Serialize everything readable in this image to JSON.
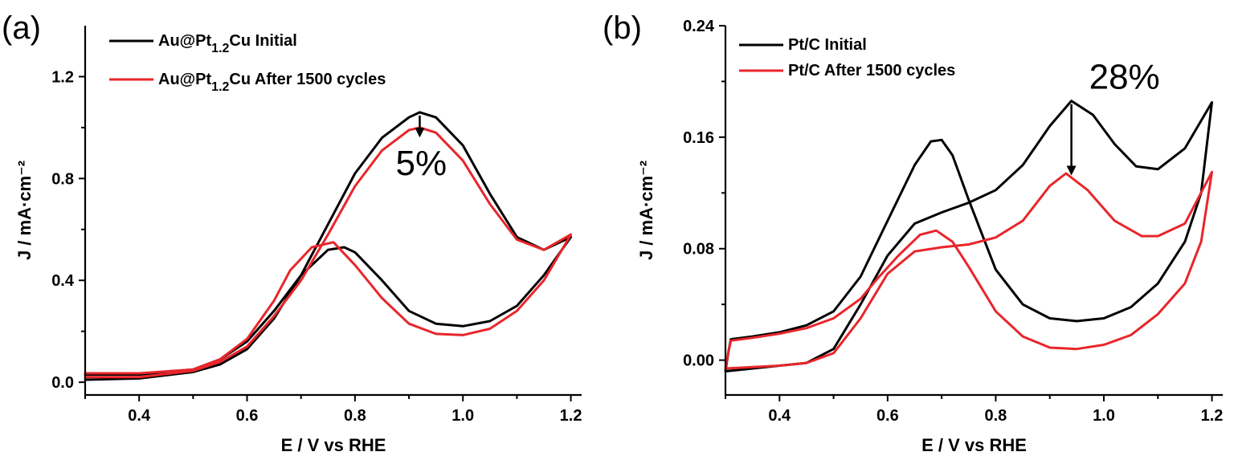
{
  "chart_data": [
    {
      "type": "line",
      "panel_label": "(a)",
      "xlabel": "E / V vs RHE",
      "ylabel": "J / mA·cm⁻²",
      "xlim": [
        0.3,
        1.22
      ],
      "ylim": [
        -0.05,
        1.4
      ],
      "xticks": [
        0.4,
        0.6,
        0.8,
        1.0,
        1.2
      ],
      "xtick_labels": [
        "0.4",
        "0.6",
        "0.8",
        "1.0",
        "1.2"
      ],
      "yticks": [
        0.0,
        0.4,
        0.8,
        1.2
      ],
      "ytick_labels": [
        "0.0",
        "0.4",
        "0.8",
        "1.2"
      ],
      "legend_position": "top-left",
      "series": [
        {
          "name": "Au@Pt1.2Cu Initial",
          "legend_parts": [
            "Au@Pt",
            "1.2",
            "Cu Initial"
          ],
          "color": "#000000",
          "forward": [
            [
              0.3,
              0.01
            ],
            [
              0.4,
              0.015
            ],
            [
              0.5,
              0.04
            ],
            [
              0.55,
              0.07
            ],
            [
              0.6,
              0.13
            ],
            [
              0.65,
              0.25
            ],
            [
              0.7,
              0.42
            ],
            [
              0.75,
              0.62
            ],
            [
              0.8,
              0.82
            ],
            [
              0.85,
              0.96
            ],
            [
              0.9,
              1.04
            ],
            [
              0.92,
              1.06
            ],
            [
              0.95,
              1.04
            ],
            [
              1.0,
              0.93
            ],
            [
              1.05,
              0.74
            ],
            [
              1.1,
              0.57
            ],
            [
              1.15,
              0.52
            ],
            [
              1.2,
              0.57
            ]
          ],
          "reverse": [
            [
              1.2,
              0.57
            ],
            [
              1.15,
              0.42
            ],
            [
              1.1,
              0.3
            ],
            [
              1.05,
              0.24
            ],
            [
              1.0,
              0.22
            ],
            [
              0.95,
              0.23
            ],
            [
              0.9,
              0.28
            ],
            [
              0.85,
              0.4
            ],
            [
              0.8,
              0.51
            ],
            [
              0.78,
              0.53
            ],
            [
              0.75,
              0.52
            ],
            [
              0.7,
              0.42
            ],
            [
              0.65,
              0.28
            ],
            [
              0.6,
              0.16
            ],
            [
              0.55,
              0.09
            ],
            [
              0.5,
              0.05
            ],
            [
              0.4,
              0.03
            ],
            [
              0.3,
              0.03
            ]
          ]
        },
        {
          "name": "Au@Pt1.2Cu After 1500 cycles",
          "legend_parts": [
            "Au@Pt",
            "1.2",
            "Cu After 1500 cycles"
          ],
          "color": "#e8262b",
          "forward": [
            [
              0.3,
              0.02
            ],
            [
              0.4,
              0.02
            ],
            [
              0.5,
              0.045
            ],
            [
              0.55,
              0.08
            ],
            [
              0.6,
              0.14
            ],
            [
              0.65,
              0.26
            ],
            [
              0.7,
              0.4
            ],
            [
              0.75,
              0.58
            ],
            [
              0.8,
              0.77
            ],
            [
              0.85,
              0.91
            ],
            [
              0.9,
              0.99
            ],
            [
              0.92,
              1.0
            ],
            [
              0.95,
              0.98
            ],
            [
              1.0,
              0.87
            ],
            [
              1.05,
              0.7
            ],
            [
              1.1,
              0.56
            ],
            [
              1.15,
              0.52
            ],
            [
              1.2,
              0.58
            ]
          ],
          "reverse": [
            [
              1.2,
              0.58
            ],
            [
              1.15,
              0.4
            ],
            [
              1.1,
              0.28
            ],
            [
              1.05,
              0.21
            ],
            [
              1.0,
              0.185
            ],
            [
              0.95,
              0.19
            ],
            [
              0.9,
              0.23
            ],
            [
              0.85,
              0.33
            ],
            [
              0.8,
              0.46
            ],
            [
              0.76,
              0.55
            ],
            [
              0.72,
              0.53
            ],
            [
              0.68,
              0.44
            ],
            [
              0.65,
              0.32
            ],
            [
              0.6,
              0.17
            ],
            [
              0.55,
              0.09
            ],
            [
              0.5,
              0.05
            ],
            [
              0.4,
              0.035
            ],
            [
              0.3,
              0.035
            ]
          ]
        }
      ],
      "annotation": {
        "text": "5%",
        "x": 0.92,
        "y_from": 1.06,
        "y_to": 0.98
      }
    },
    {
      "type": "line",
      "panel_label": "(b)",
      "xlabel": "E / V vs RHE",
      "ylabel": "J / mA·cm⁻²",
      "xlim": [
        0.3,
        1.22
      ],
      "ylim": [
        -0.025,
        0.24
      ],
      "xticks": [
        0.4,
        0.6,
        0.8,
        1.0,
        1.2
      ],
      "xtick_labels": [
        "0.4",
        "0.6",
        "0.8",
        "1.0",
        "1.2"
      ],
      "yticks": [
        0.0,
        0.08,
        0.16,
        0.24
      ],
      "ytick_labels": [
        "0.00",
        "0.08",
        "0.16",
        "0.24"
      ],
      "legend_position": "top-left",
      "series": [
        {
          "name": "Pt/C Initial",
          "legend_parts": [
            "Pt/C Initial",
            "",
            ""
          ],
          "color": "#000000",
          "forward": [
            [
              0.3,
              -0.008
            ],
            [
              0.35,
              -0.006
            ],
            [
              0.4,
              -0.004
            ],
            [
              0.45,
              -0.002
            ],
            [
              0.5,
              0.008
            ],
            [
              0.55,
              0.04
            ],
            [
              0.6,
              0.075
            ],
            [
              0.65,
              0.098
            ],
            [
              0.7,
              0.106
            ],
            [
              0.75,
              0.113
            ],
            [
              0.8,
              0.122
            ],
            [
              0.85,
              0.14
            ],
            [
              0.9,
              0.168
            ],
            [
              0.94,
              0.186
            ],
            [
              0.98,
              0.176
            ],
            [
              1.02,
              0.155
            ],
            [
              1.06,
              0.139
            ],
            [
              1.1,
              0.137
            ],
            [
              1.15,
              0.152
            ],
            [
              1.2,
              0.185
            ]
          ],
          "reverse": [
            [
              1.2,
              0.185
            ],
            [
              1.18,
              0.12
            ],
            [
              1.15,
              0.085
            ],
            [
              1.1,
              0.055
            ],
            [
              1.05,
              0.038
            ],
            [
              1.0,
              0.03
            ],
            [
              0.95,
              0.028
            ],
            [
              0.9,
              0.03
            ],
            [
              0.85,
              0.04
            ],
            [
              0.8,
              0.065
            ],
            [
              0.75,
              0.115
            ],
            [
              0.72,
              0.147
            ],
            [
              0.7,
              0.158
            ],
            [
              0.68,
              0.157
            ],
            [
              0.65,
              0.14
            ],
            [
              0.6,
              0.1
            ],
            [
              0.55,
              0.06
            ],
            [
              0.5,
              0.035
            ],
            [
              0.45,
              0.025
            ],
            [
              0.4,
              0.02
            ],
            [
              0.35,
              0.017
            ],
            [
              0.31,
              0.015
            ],
            [
              0.305,
              0.005
            ],
            [
              0.3,
              -0.008
            ]
          ]
        },
        {
          "name": "Pt/C After 1500 cycles",
          "legend_parts": [
            "Pt/C After 1500 cycles",
            "",
            ""
          ],
          "color": "#e8262b",
          "forward": [
            [
              0.3,
              -0.006
            ],
            [
              0.35,
              -0.005
            ],
            [
              0.4,
              -0.004
            ],
            [
              0.45,
              -0.002
            ],
            [
              0.5,
              0.005
            ],
            [
              0.55,
              0.03
            ],
            [
              0.6,
              0.062
            ],
            [
              0.65,
              0.078
            ],
            [
              0.7,
              0.081
            ],
            [
              0.75,
              0.083
            ],
            [
              0.8,
              0.088
            ],
            [
              0.85,
              0.1
            ],
            [
              0.9,
              0.125
            ],
            [
              0.93,
              0.134
            ],
            [
              0.97,
              0.122
            ],
            [
              1.02,
              0.1
            ],
            [
              1.07,
              0.089
            ],
            [
              1.1,
              0.089
            ],
            [
              1.15,
              0.098
            ],
            [
              1.2,
              0.135
            ]
          ],
          "reverse": [
            [
              1.2,
              0.135
            ],
            [
              1.18,
              0.085
            ],
            [
              1.15,
              0.055
            ],
            [
              1.1,
              0.033
            ],
            [
              1.05,
              0.018
            ],
            [
              1.0,
              0.011
            ],
            [
              0.95,
              0.008
            ],
            [
              0.9,
              0.009
            ],
            [
              0.85,
              0.017
            ],
            [
              0.8,
              0.035
            ],
            [
              0.75,
              0.067
            ],
            [
              0.72,
              0.085
            ],
            [
              0.69,
              0.093
            ],
            [
              0.66,
              0.09
            ],
            [
              0.62,
              0.075
            ],
            [
              0.58,
              0.058
            ],
            [
              0.55,
              0.044
            ],
            [
              0.5,
              0.03
            ],
            [
              0.45,
              0.023
            ],
            [
              0.4,
              0.019
            ],
            [
              0.35,
              0.016
            ],
            [
              0.31,
              0.014
            ],
            [
              0.305,
              0.005
            ],
            [
              0.3,
              -0.006
            ]
          ]
        }
      ],
      "annotation": {
        "text": "28%",
        "x": 0.94,
        "y_from": 0.186,
        "y_to": 0.136
      }
    }
  ]
}
